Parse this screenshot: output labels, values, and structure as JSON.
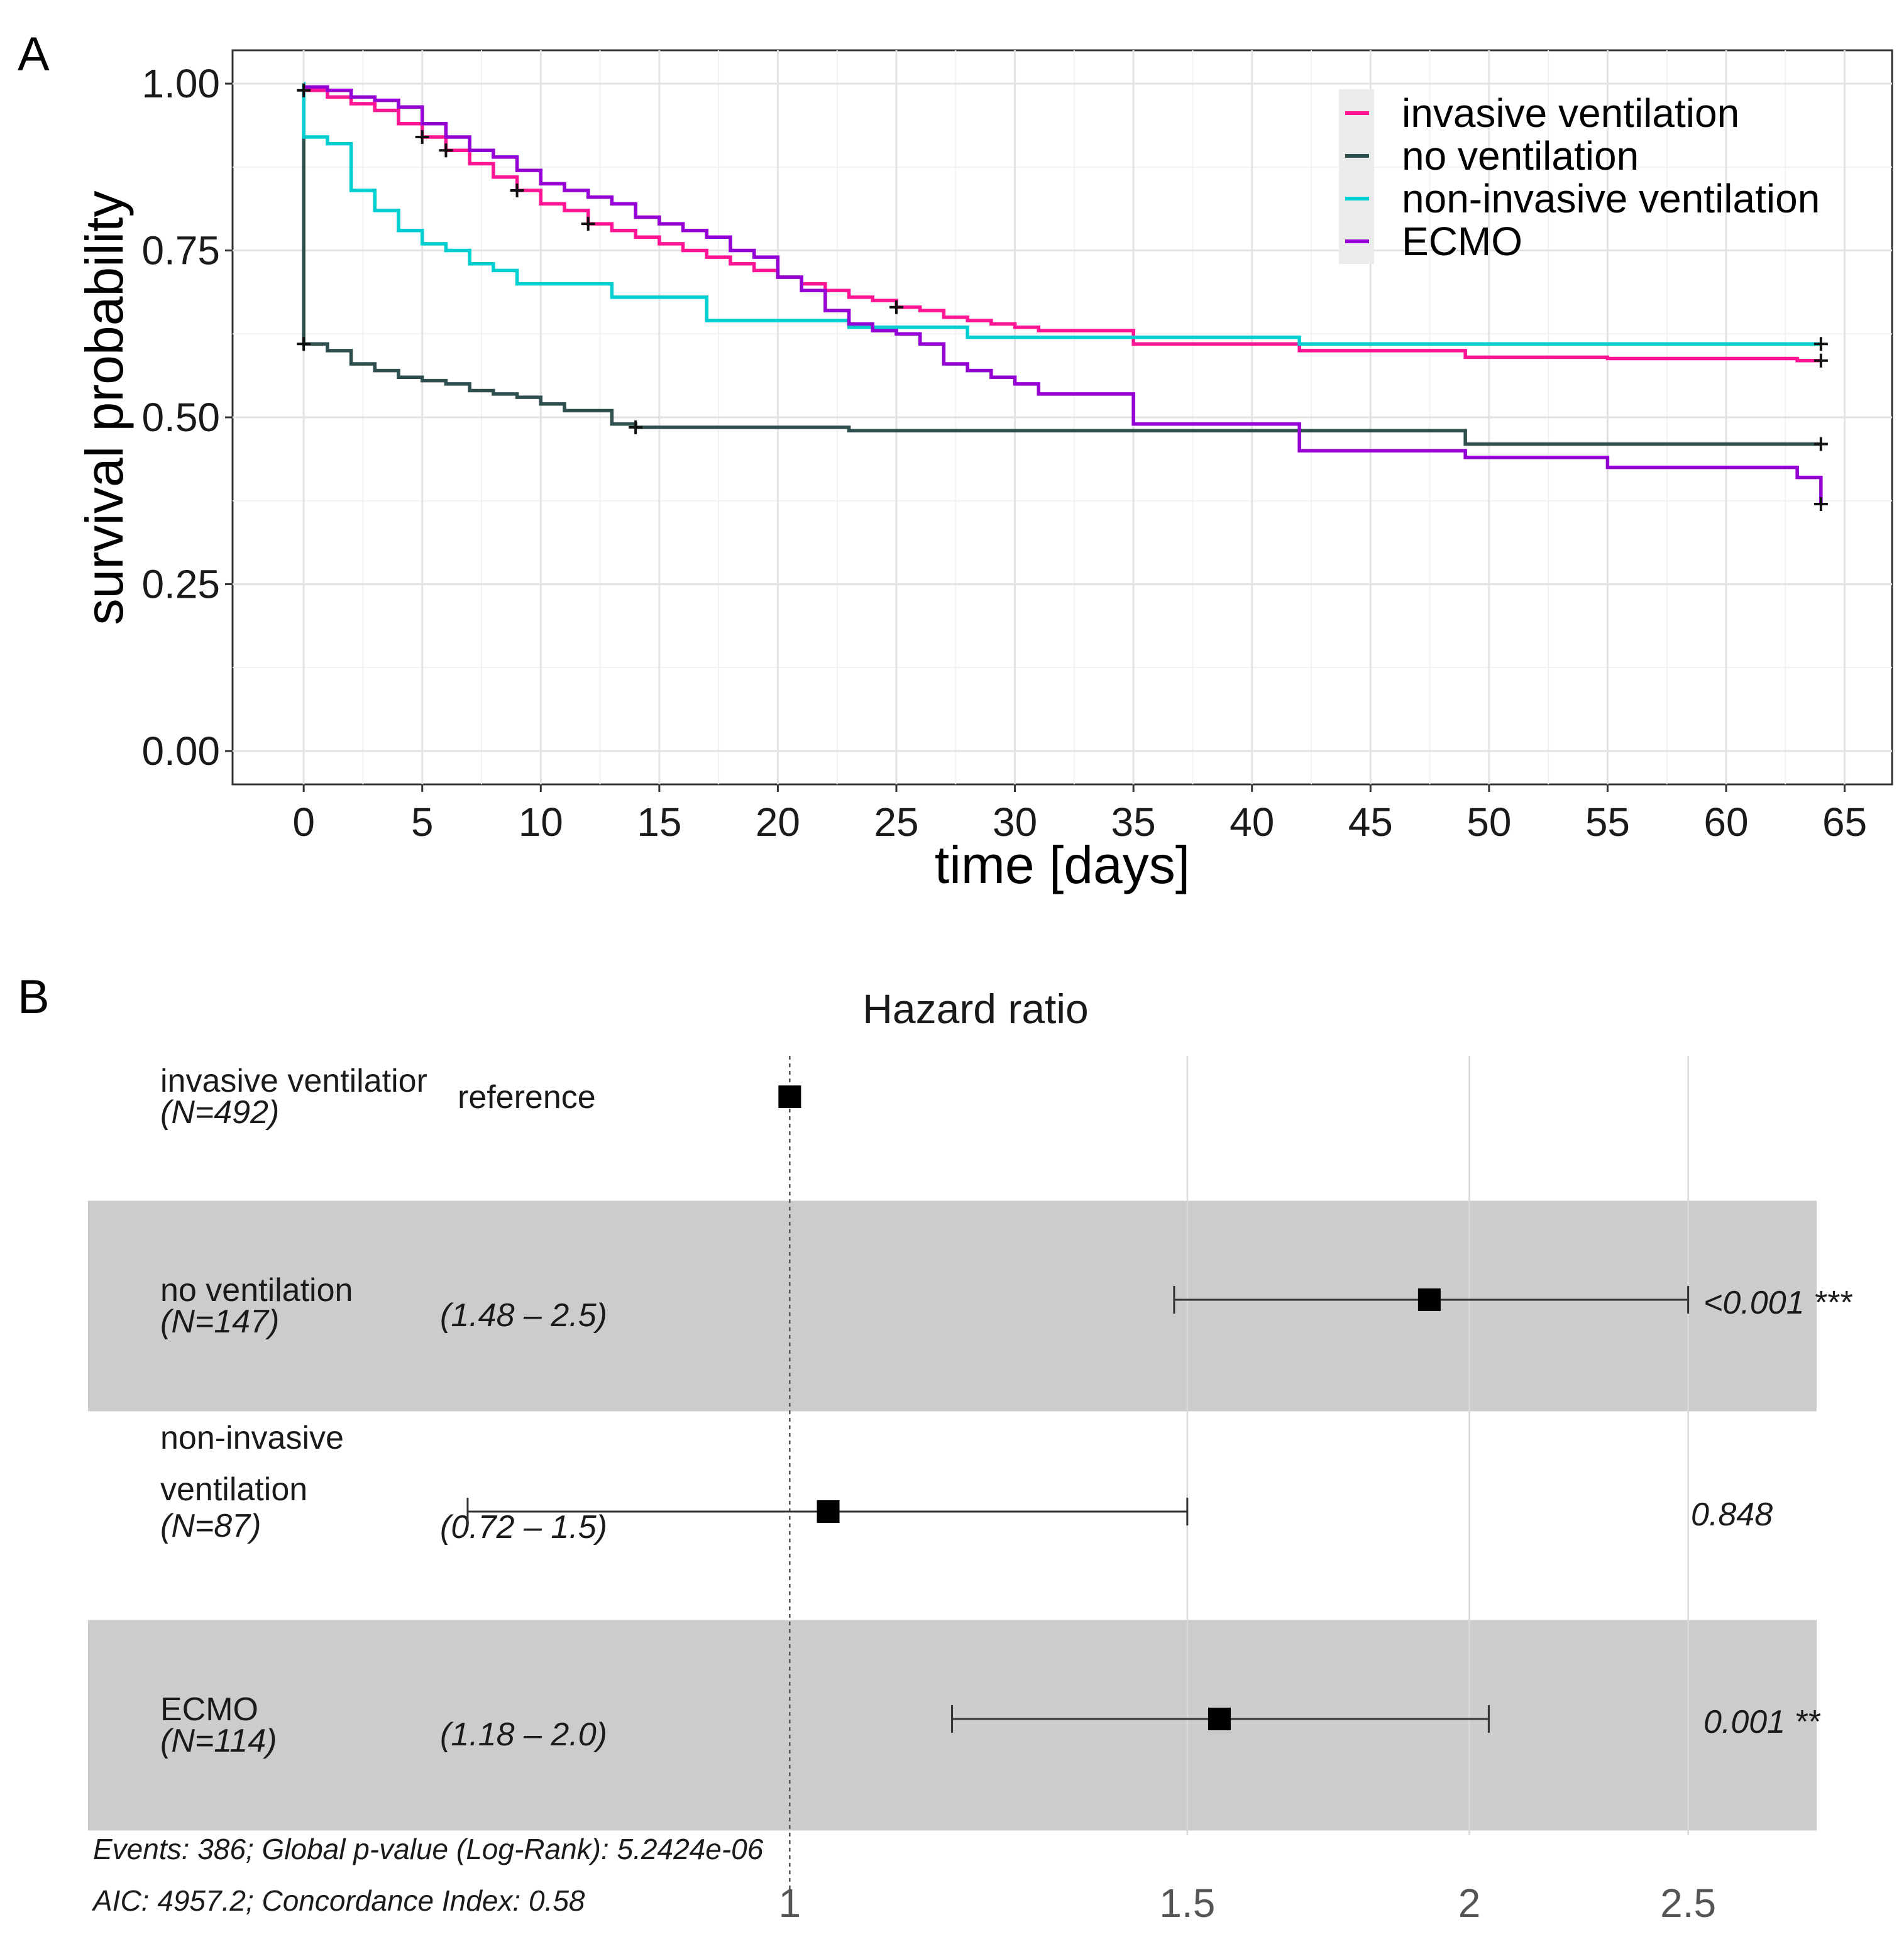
{
  "panels": {
    "a_label": "A",
    "b_label": "B"
  },
  "chart_data": [
    {
      "type": "line",
      "step": true,
      "xlabel": "time [days]",
      "ylabel": "survival probability",
      "xlim": [
        -3,
        67
      ],
      "ylim": [
        -0.05,
        1.05
      ],
      "xticks": [
        0,
        5,
        10,
        15,
        20,
        25,
        30,
        35,
        40,
        45,
        50,
        55,
        60,
        65
      ],
      "yticks": [
        0.0,
        0.25,
        0.5,
        0.75,
        1.0
      ],
      "xtick_labels": [
        "0",
        "5",
        "10",
        "15",
        "20",
        "25",
        "30",
        "35",
        "40",
        "45",
        "50",
        "55",
        "60",
        "65"
      ],
      "ytick_labels": [
        "0.00",
        "0.25",
        "0.50",
        "0.75",
        "1.00"
      ],
      "grid": true,
      "legend_position": "top-right",
      "series": [
        {
          "name": "invasive ventilation",
          "color": "#ff1493",
          "x": [
            0,
            1,
            2,
            3,
            4,
            5,
            6,
            7,
            8,
            9,
            10,
            11,
            12,
            13,
            14,
            15,
            16,
            17,
            18,
            19,
            20,
            21,
            22,
            23,
            24,
            25,
            26,
            27,
            28,
            29,
            30,
            31,
            35,
            42,
            49,
            55,
            63,
            64
          ],
          "y": [
            0.99,
            0.98,
            0.97,
            0.96,
            0.94,
            0.92,
            0.9,
            0.88,
            0.86,
            0.84,
            0.82,
            0.81,
            0.79,
            0.78,
            0.77,
            0.76,
            0.75,
            0.74,
            0.73,
            0.72,
            0.71,
            0.7,
            0.69,
            0.68,
            0.675,
            0.665,
            0.66,
            0.65,
            0.645,
            0.64,
            0.635,
            0.63,
            0.61,
            0.6,
            0.59,
            0.588,
            0.585,
            0.585
          ],
          "censor_x": [
            0,
            5,
            6,
            9,
            12,
            25,
            64
          ],
          "censor_y": [
            0.99,
            0.92,
            0.9,
            0.84,
            0.79,
            0.665,
            0.585
          ]
        },
        {
          "name": "no ventilation",
          "color": "#2f4f4f",
          "x": [
            0,
            0.001,
            1,
            2,
            3,
            4,
            5,
            6,
            7,
            8,
            9,
            10,
            11,
            12,
            13,
            14,
            23,
            49,
            64
          ],
          "y": [
            1.0,
            0.61,
            0.6,
            0.58,
            0.57,
            0.56,
            0.555,
            0.55,
            0.54,
            0.535,
            0.53,
            0.52,
            0.51,
            0.51,
            0.49,
            0.485,
            0.48,
            0.46,
            0.46
          ],
          "censor_x": [
            0,
            14,
            64
          ],
          "censor_y": [
            0.61,
            0.485,
            0.46
          ]
        },
        {
          "name": "non-invasive ventilation",
          "color": "#00ced1",
          "x": [
            0,
            0.001,
            1,
            2,
            3,
            4,
            5,
            6,
            7,
            8,
            9,
            13,
            17,
            23,
            28,
            42,
            64
          ],
          "y": [
            1.0,
            0.92,
            0.91,
            0.84,
            0.81,
            0.78,
            0.76,
            0.75,
            0.73,
            0.72,
            0.7,
            0.68,
            0.645,
            0.635,
            0.62,
            0.61,
            0.61
          ],
          "censor_x": [
            64
          ],
          "censor_y": [
            0.61
          ]
        },
        {
          "name": "ECMO",
          "color": "#9400d3",
          "x": [
            0,
            1,
            2,
            3,
            4,
            5,
            6,
            7,
            8,
            9,
            10,
            11,
            12,
            13,
            14,
            15,
            16,
            17,
            18,
            19,
            20,
            21,
            22,
            23,
            24,
            25,
            26,
            27,
            28,
            29,
            30,
            31,
            35,
            42,
            49,
            55,
            63,
            64
          ],
          "y": [
            0.995,
            0.99,
            0.98,
            0.975,
            0.965,
            0.94,
            0.92,
            0.9,
            0.89,
            0.87,
            0.85,
            0.84,
            0.83,
            0.82,
            0.8,
            0.79,
            0.78,
            0.77,
            0.75,
            0.74,
            0.71,
            0.69,
            0.66,
            0.64,
            0.63,
            0.625,
            0.61,
            0.58,
            0.57,
            0.56,
            0.55,
            0.535,
            0.49,
            0.45,
            0.44,
            0.425,
            0.41,
            0.37
          ],
          "censor_x": [
            64
          ],
          "censor_y": [
            0.37
          ]
        }
      ]
    },
    {
      "type": "forest",
      "title": "Hazard ratio",
      "xscale": "log",
      "xlim": [
        0.7,
        2.85
      ],
      "xticks": [
        1,
        1.5,
        2,
        2.5
      ],
      "xtick_labels": [
        "1",
        "1.5",
        "2",
        "2.5"
      ],
      "rows": [
        {
          "name": "invasive ventilatior",
          "n": "(N=492)",
          "ci_text": "reference",
          "hr": 1.0,
          "lo": null,
          "hi": null,
          "p_text": "",
          "shaded": false,
          "label_lines": [
            "invasive ventilatior"
          ]
        },
        {
          "name": "no ventilation",
          "n": "(N=147)",
          "ci_text": "(1.48 – 2.5)",
          "hr": 1.92,
          "lo": 1.48,
          "hi": 2.5,
          "p_text": "<0.001 ***",
          "shaded": true,
          "label_lines": [
            "no ventilation"
          ]
        },
        {
          "name": "non-invasive ventilation",
          "n": "(N=87)",
          "ci_text": "(0.72 – 1.5)",
          "hr": 1.04,
          "lo": 0.72,
          "hi": 1.5,
          "p_text": "0.848",
          "shaded": false,
          "label_lines": [
            "non-invasive",
            "ventilation"
          ]
        },
        {
          "name": "ECMO",
          "n": "(N=114)",
          "ci_text": "(1.18 – 2.0)",
          "hr": 1.55,
          "lo": 1.18,
          "hi": 2.04,
          "p_text": "0.001 **",
          "shaded": true,
          "label_lines": [
            "ECMO"
          ]
        }
      ],
      "footnote_1": "Events: 386; Global p-value (Log-Rank): 5.2424e-06",
      "footnote_2": "AIC: 4957.2; Concordance Index: 0.58"
    }
  ]
}
